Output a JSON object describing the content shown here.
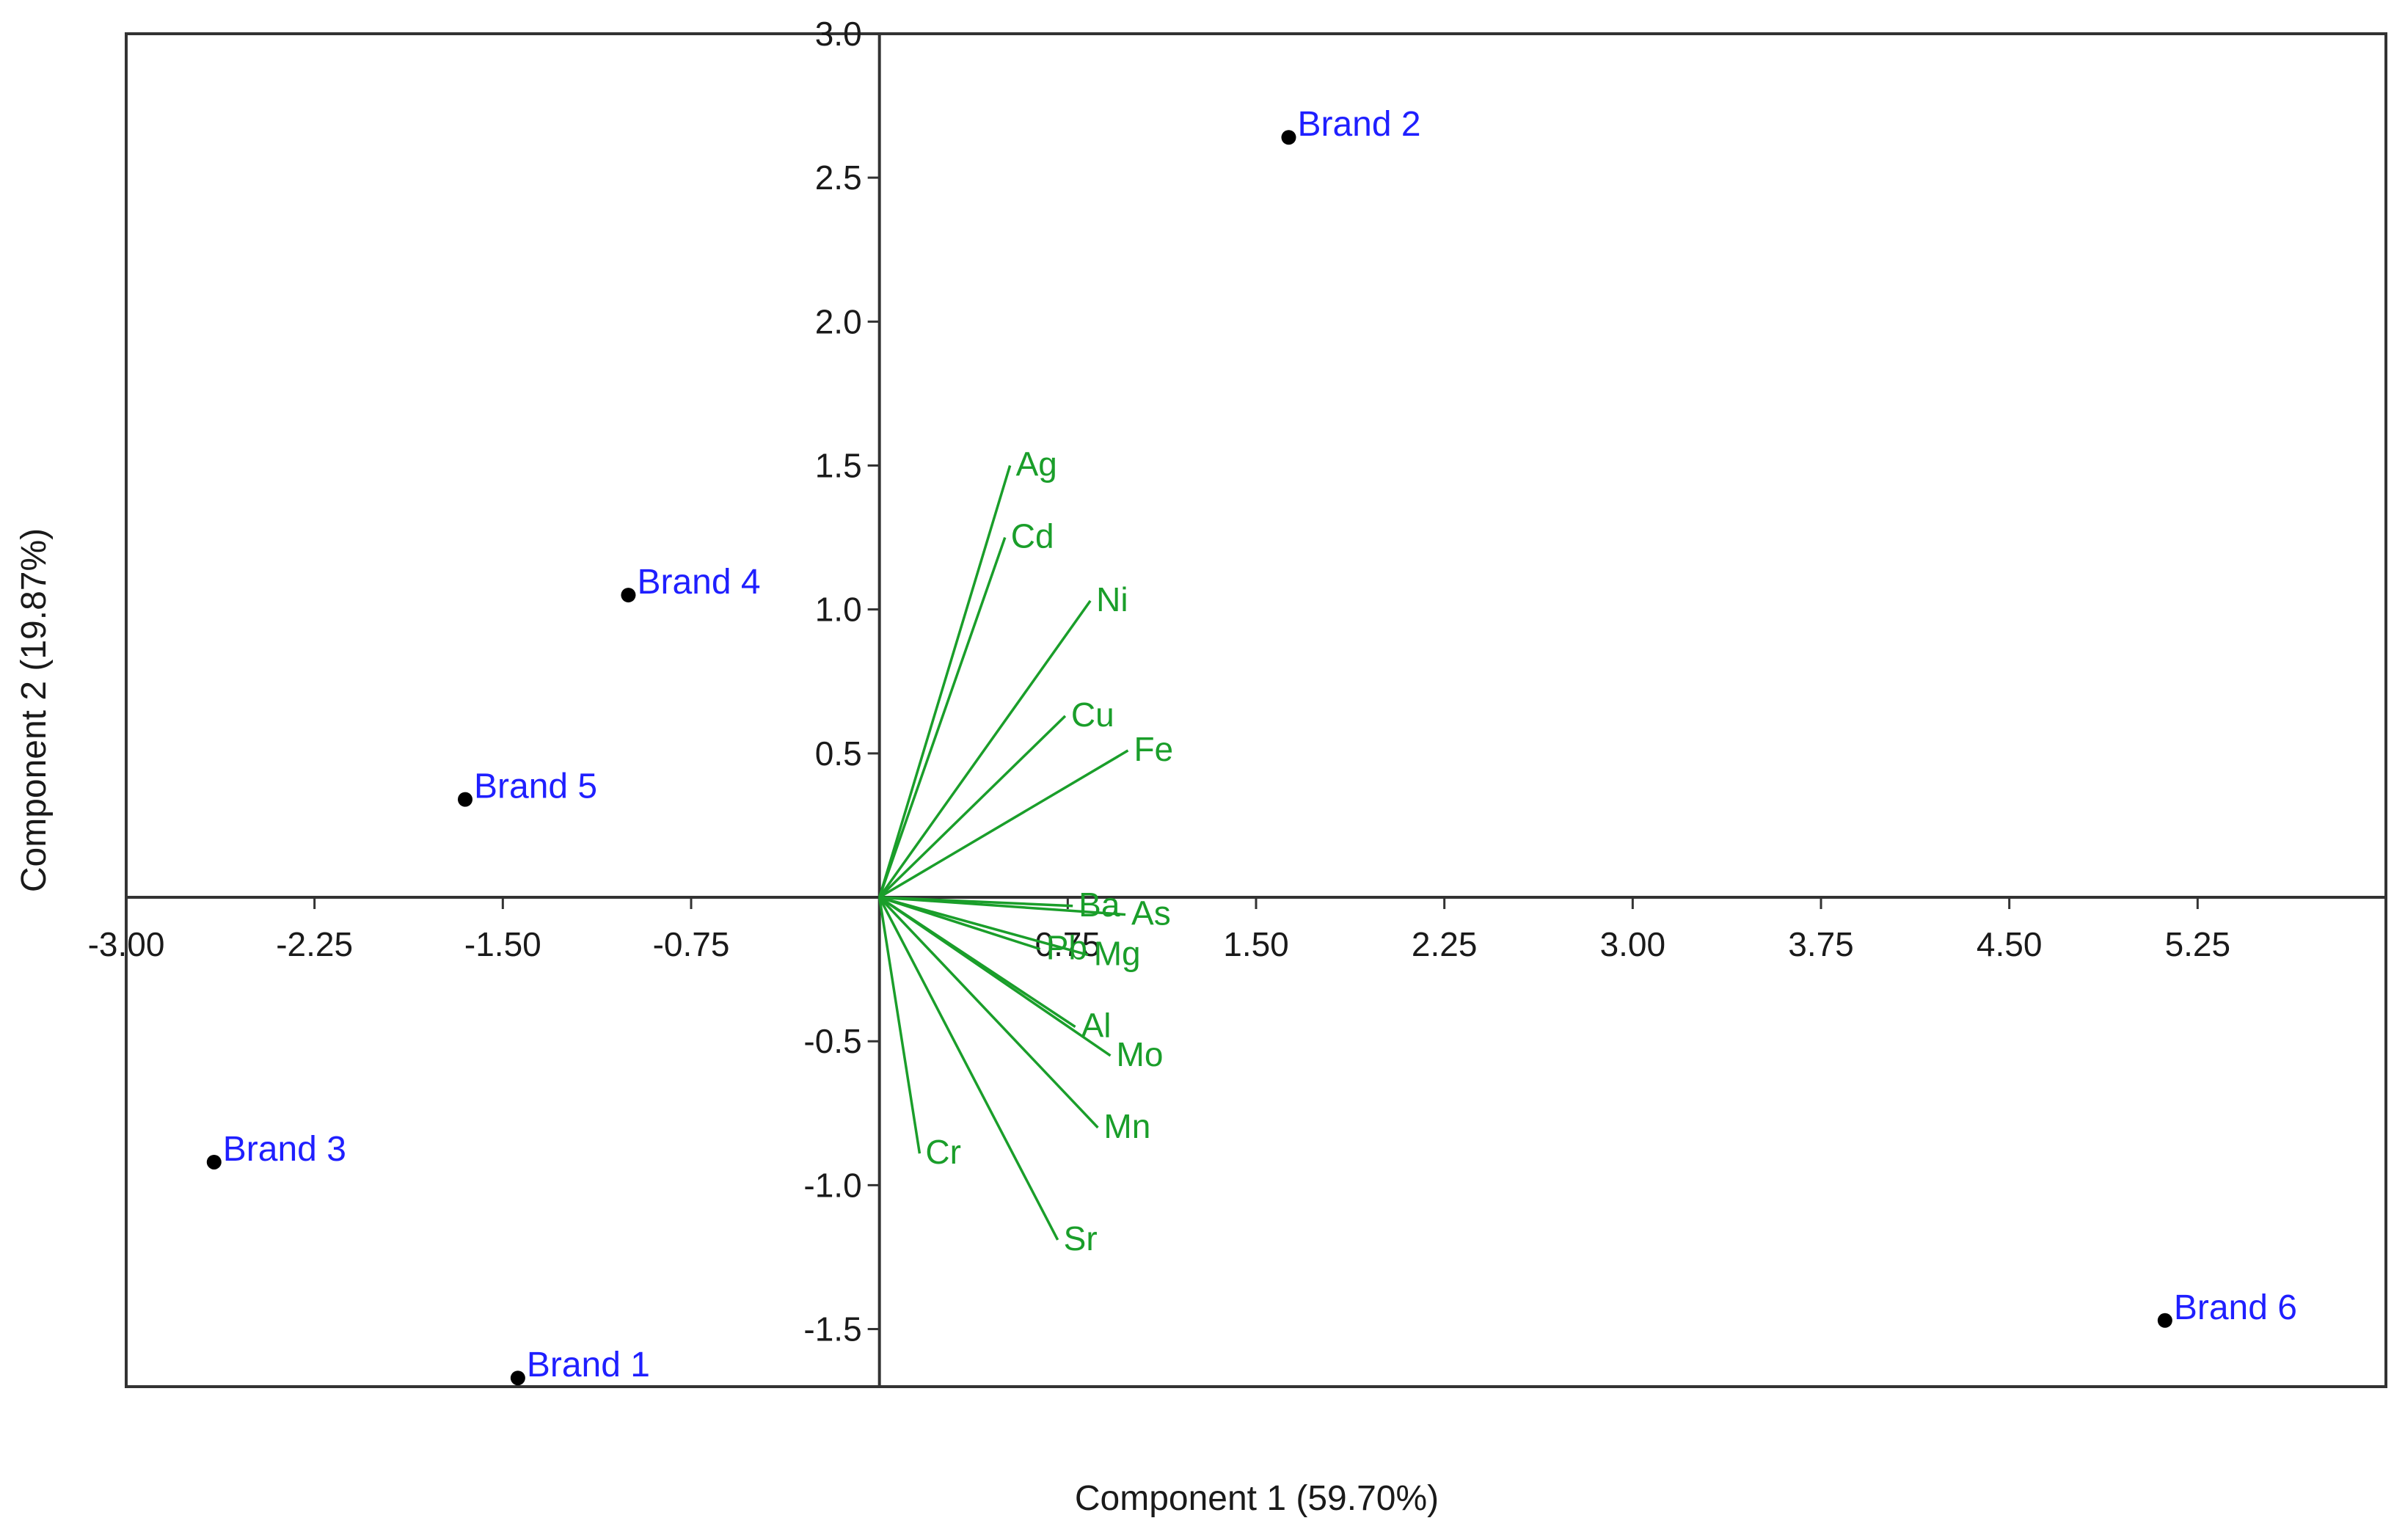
{
  "chart_data": {
    "type": "scatter",
    "subtype": "pca-biplot",
    "title": "",
    "xlabel": "Component 1 (59.70%)",
    "ylabel": "Component 2 (19.87%)",
    "xlim": [
      -3.0,
      6.0
    ],
    "ylim": [
      -1.7,
      3.0
    ],
    "x_ticks": [
      -3.0,
      -2.25,
      -1.5,
      -0.75,
      0.75,
      1.5,
      2.25,
      3.0,
      3.75,
      4.5,
      5.25
    ],
    "x_tick_labels": [
      "-3.00",
      "-2.25",
      "-1.50",
      "-0.75",
      "0.75",
      "1.50",
      "2.25",
      "3.00",
      "3.75",
      "4.50",
      "5.25"
    ],
    "y_ticks": [
      -1.5,
      -1.0,
      -0.5,
      0.5,
      1.0,
      1.5,
      2.0,
      2.5,
      3.0
    ],
    "y_tick_labels": [
      "-1.5",
      "-1.0",
      "-0.5",
      "0.5",
      "1.0",
      "1.5",
      "2.0",
      "2.5",
      "3.0"
    ],
    "grid": false,
    "legend": "none",
    "scores": [
      {
        "name": "Brand 1",
        "x": -1.44,
        "y": -1.67
      },
      {
        "name": "Brand 2",
        "x": 1.63,
        "y": 2.64
      },
      {
        "name": "Brand 3",
        "x": -2.65,
        "y": -0.92
      },
      {
        "name": "Brand 4",
        "x": -1.0,
        "y": 1.05
      },
      {
        "name": "Brand 5",
        "x": -1.65,
        "y": 0.34
      },
      {
        "name": "Brand 6",
        "x": 5.12,
        "y": -1.47
      }
    ],
    "loadings": [
      {
        "name": "Ag",
        "x": 0.52,
        "y": 1.5
      },
      {
        "name": "Cd",
        "x": 0.5,
        "y": 1.25
      },
      {
        "name": "Ni",
        "x": 0.84,
        "y": 1.03
      },
      {
        "name": "Cu",
        "x": 0.74,
        "y": 0.63
      },
      {
        "name": "Fe",
        "x": 0.99,
        "y": 0.51
      },
      {
        "name": "Ba",
        "x": 0.77,
        "y": -0.03
      },
      {
        "name": "As",
        "x": 0.98,
        "y": -0.06
      },
      {
        "name": "Pb",
        "x": 0.64,
        "y": -0.18
      },
      {
        "name": "Mg",
        "x": 0.83,
        "y": -0.2
      },
      {
        "name": "Al",
        "x": 0.78,
        "y": -0.45
      },
      {
        "name": "Mo",
        "x": 0.92,
        "y": -0.55
      },
      {
        "name": "Mn",
        "x": 0.87,
        "y": -0.8
      },
      {
        "name": "Cr",
        "x": 0.16,
        "y": -0.89
      },
      {
        "name": "Sr",
        "x": 0.71,
        "y": -1.19
      }
    ],
    "colors": {
      "score_point": "#000000",
      "score_label": "#1f1fff",
      "loading": "#1a9e2a",
      "axis": "#333333",
      "frame": "#333333",
      "text": "#1a1a1a"
    }
  }
}
